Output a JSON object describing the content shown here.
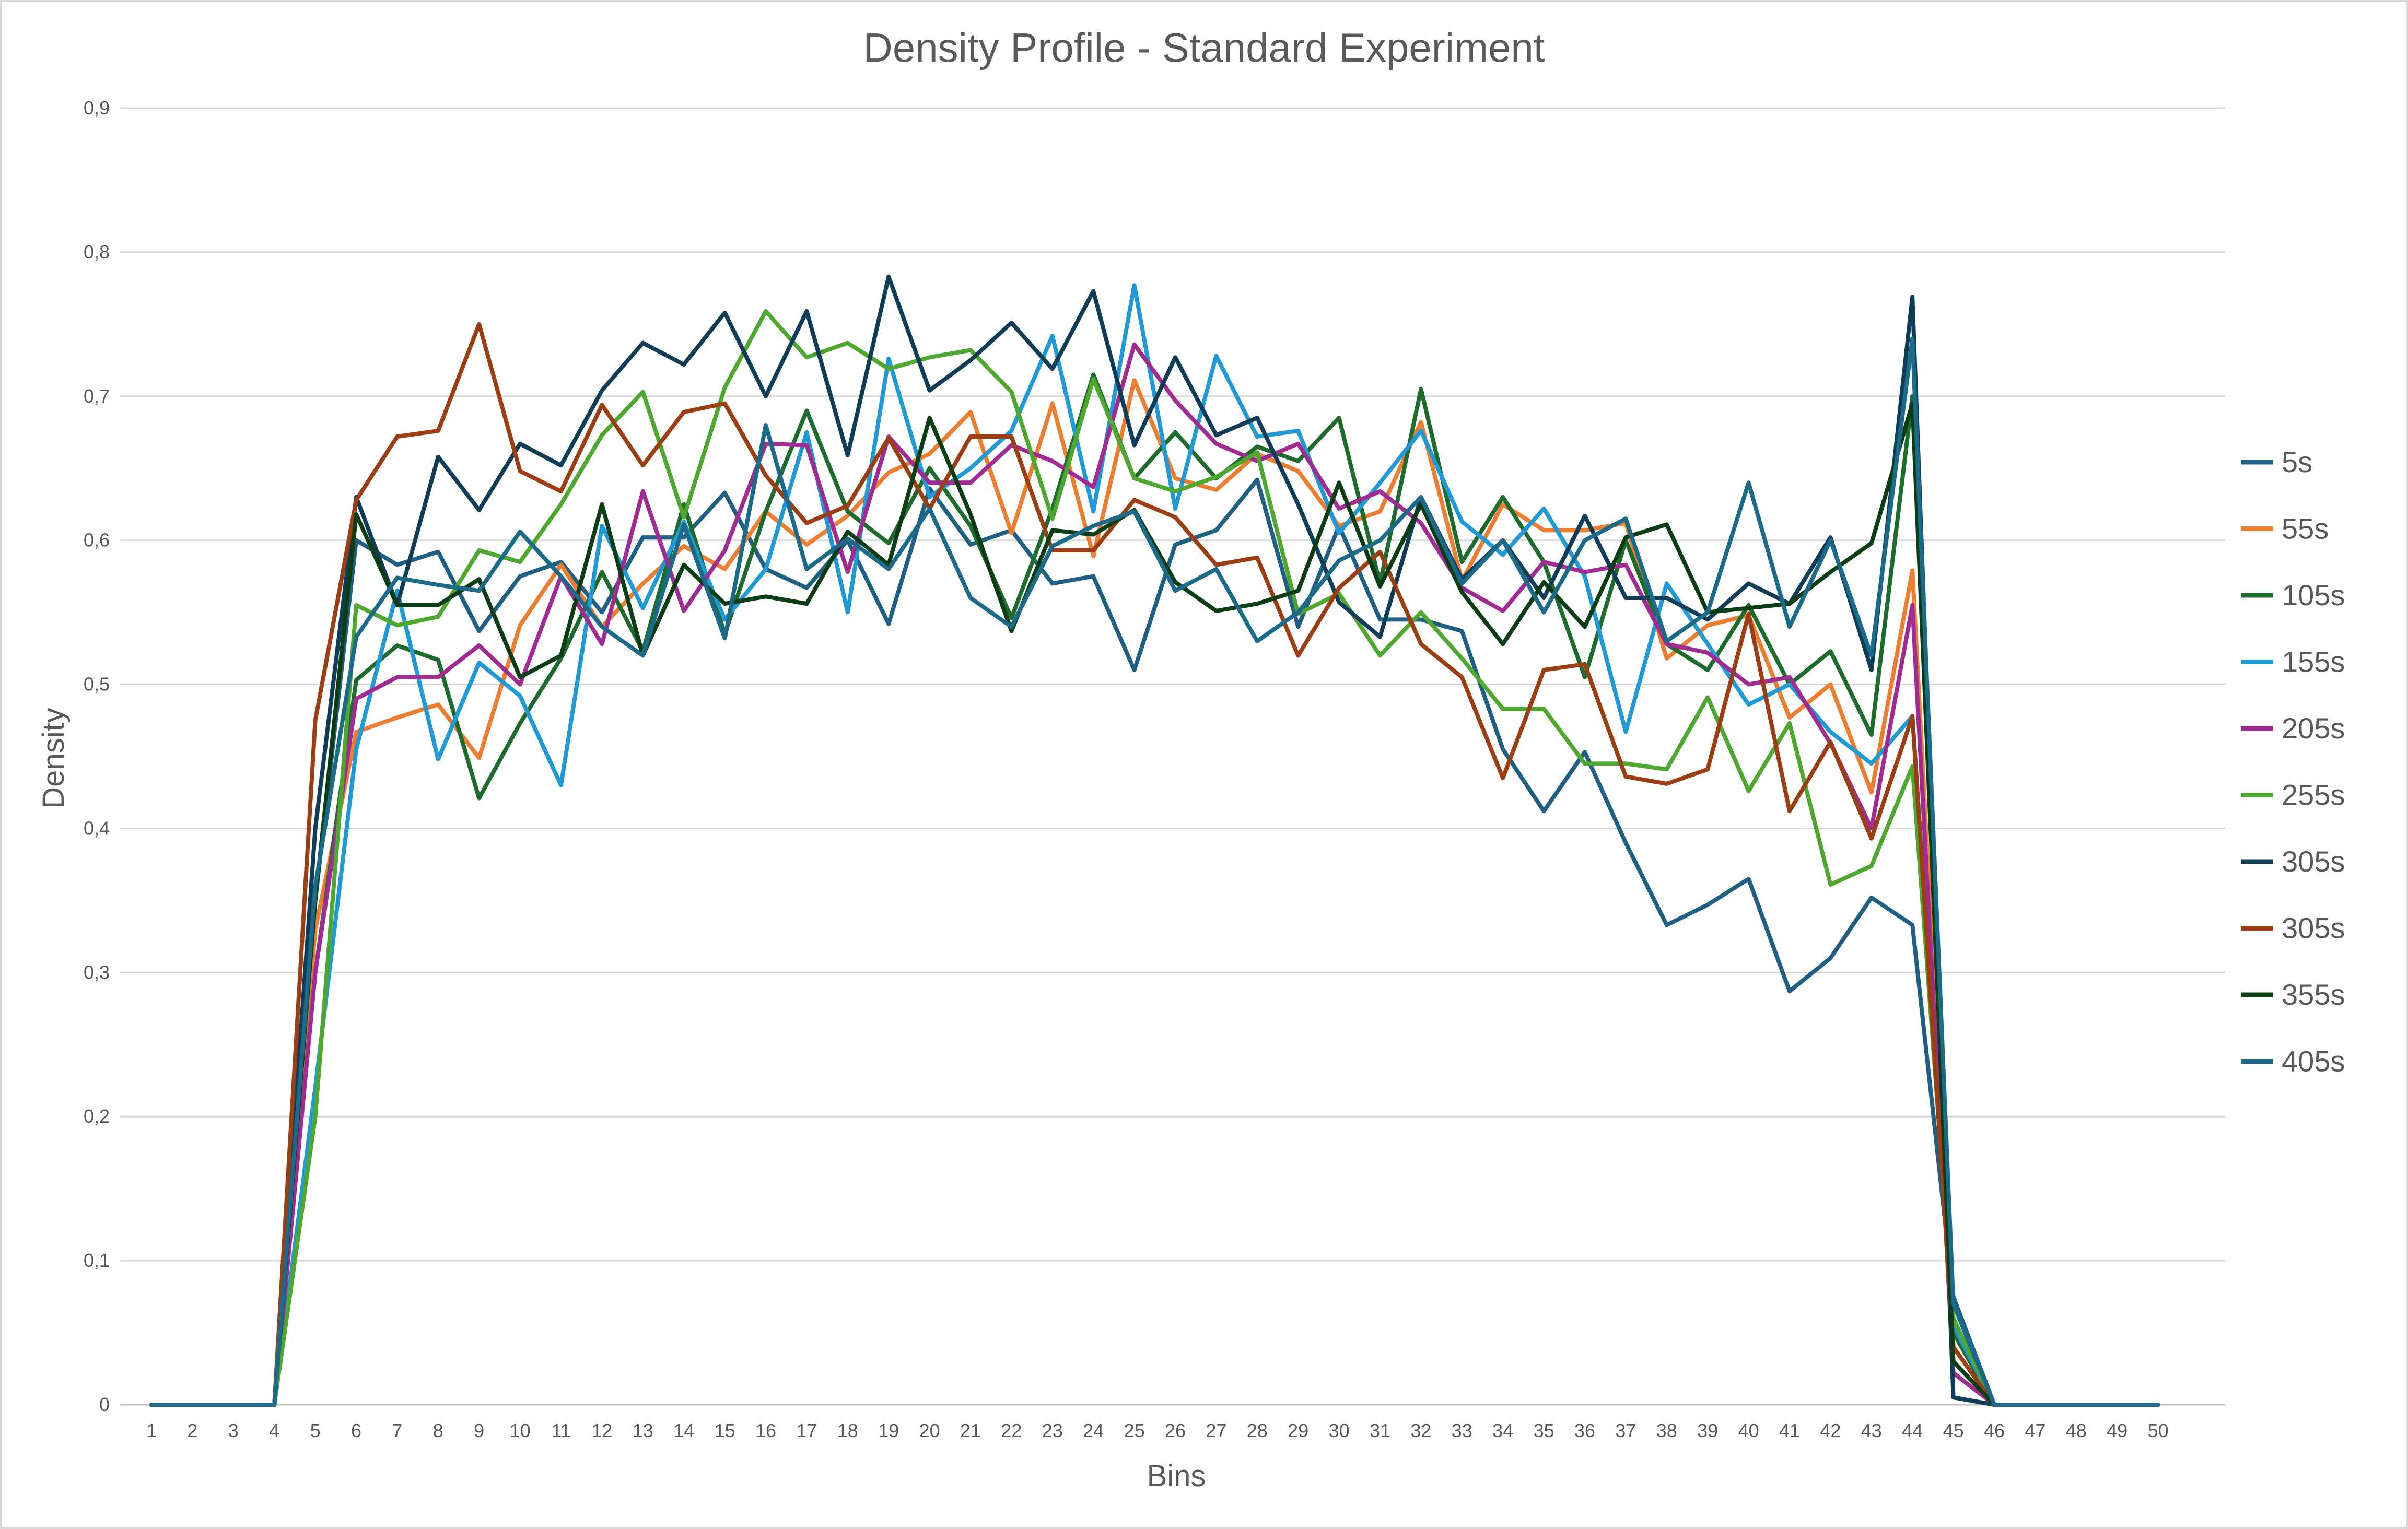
{
  "chart_data": {
    "type": "line",
    "title": "Density Profile - Standard Experiment",
    "xlabel": "Bins",
    "ylabel": "Density",
    "x": [
      1,
      2,
      3,
      4,
      5,
      6,
      7,
      8,
      9,
      10,
      11,
      12,
      13,
      14,
      15,
      16,
      17,
      18,
      19,
      20,
      21,
      22,
      23,
      24,
      25,
      26,
      27,
      28,
      29,
      30,
      31,
      32,
      33,
      34,
      35,
      36,
      37,
      38,
      39,
      40,
      41,
      42,
      43,
      44,
      45,
      46,
      47,
      48,
      49,
      50
    ],
    "ylim": [
      0,
      0.9
    ],
    "yticks": [
      "0",
      "0,1",
      "0,2",
      "0,3",
      "0,4",
      "0,5",
      "0,6",
      "0,7",
      "0,8",
      "0,9"
    ],
    "grid": "horizontal",
    "legend_position": "right",
    "series": [
      {
        "name": "5s",
        "color": "#1f5f83",
        "values": [
          0,
          0,
          0,
          0,
          0.35,
          0.6,
          0.583,
          0.592,
          0.537,
          0.575,
          0.585,
          0.55,
          0.602,
          0.602,
          0.633,
          0.58,
          0.567,
          0.6,
          0.542,
          0.636,
          0.597,
          0.607,
          0.57,
          0.575,
          0.51,
          0.597,
          0.607,
          0.642,
          0.54,
          0.61,
          0.545,
          0.545,
          0.537,
          0.455,
          0.412,
          0.453,
          0.39,
          0.333,
          0.347,
          0.365,
          0.287,
          0.31,
          0.352,
          0.333,
          0.075,
          0,
          0,
          0,
          0,
          0
        ]
      },
      {
        "name": "55s",
        "color": "#ed7d31",
        "values": [
          0,
          0,
          0,
          0,
          0.33,
          0.467,
          0.477,
          0.486,
          0.449,
          0.541,
          0.583,
          0.54,
          0.57,
          0.596,
          0.58,
          0.62,
          0.597,
          0.617,
          0.647,
          0.66,
          0.689,
          0.605,
          0.695,
          0.589,
          0.711,
          0.643,
          0.635,
          0.66,
          0.648,
          0.61,
          0.62,
          0.682,
          0.572,
          0.625,
          0.607,
          0.607,
          0.612,
          0.518,
          0.541,
          0.548,
          0.477,
          0.5,
          0.425,
          0.579,
          0.04,
          0,
          0,
          0,
          0,
          0
        ]
      },
      {
        "name": "105s",
        "color": "#1e6b2e",
        "values": [
          0,
          0,
          0,
          0,
          0.3,
          0.503,
          0.527,
          0.517,
          0.421,
          0.473,
          0.518,
          0.578,
          0.523,
          0.625,
          0.535,
          0.62,
          0.69,
          0.62,
          0.598,
          0.65,
          0.61,
          0.546,
          0.622,
          0.715,
          0.643,
          0.675,
          0.643,
          0.665,
          0.655,
          0.685,
          0.57,
          0.705,
          0.585,
          0.63,
          0.585,
          0.505,
          0.6,
          0.528,
          0.51,
          0.555,
          0.5,
          0.523,
          0.465,
          0.7,
          0.05,
          0,
          0,
          0,
          0,
          0
        ]
      },
      {
        "name": "155s",
        "color": "#1f9ad6",
        "values": [
          0,
          0,
          0,
          0,
          0.22,
          0.455,
          0.565,
          0.448,
          0.515,
          0.492,
          0.43,
          0.61,
          0.553,
          0.613,
          0.545,
          0.58,
          0.675,
          0.55,
          0.726,
          0.63,
          0.65,
          0.676,
          0.742,
          0.62,
          0.777,
          0.622,
          0.728,
          0.672,
          0.676,
          0.605,
          0.64,
          0.676,
          0.613,
          0.59,
          0.622,
          0.575,
          0.467,
          0.57,
          0.528,
          0.486,
          0.5,
          0.467,
          0.445,
          0.478,
          0.055,
          0,
          0,
          0,
          0,
          0
        ]
      },
      {
        "name": "205s",
        "color": "#a02b93",
        "values": [
          0,
          0,
          0,
          0,
          0.3,
          0.49,
          0.505,
          0.505,
          0.527,
          0.5,
          0.575,
          0.528,
          0.634,
          0.551,
          0.593,
          0.667,
          0.666,
          0.578,
          0.672,
          0.64,
          0.64,
          0.666,
          0.655,
          0.637,
          0.736,
          0.697,
          0.667,
          0.655,
          0.667,
          0.622,
          0.634,
          0.612,
          0.567,
          0.551,
          0.585,
          0.578,
          0.583,
          0.528,
          0.522,
          0.5,
          0.505,
          0.459,
          0.4,
          0.555,
          0.022,
          0,
          0,
          0,
          0,
          0
        ]
      },
      {
        "name": "255s",
        "color": "#4ea72e",
        "values": [
          0,
          0,
          0,
          0,
          0.2,
          0.555,
          0.541,
          0.547,
          0.593,
          0.585,
          0.625,
          0.673,
          0.703,
          0.616,
          0.706,
          0.759,
          0.727,
          0.737,
          0.719,
          0.727,
          0.732,
          0.703,
          0.615,
          0.712,
          0.643,
          0.634,
          0.644,
          0.661,
          0.549,
          0.563,
          0.52,
          0.55,
          0.518,
          0.483,
          0.483,
          0.445,
          0.445,
          0.441,
          0.491,
          0.426,
          0.473,
          0.361,
          0.374,
          0.443,
          0.06,
          0,
          0,
          0,
          0,
          0
        ]
      },
      {
        "name": "305s",
        "color": "#0f3c57",
        "values": [
          0,
          0,
          0,
          0,
          0.4,
          0.63,
          0.555,
          0.658,
          0.621,
          0.667,
          0.652,
          0.704,
          0.737,
          0.722,
          0.758,
          0.7,
          0.759,
          0.659,
          0.783,
          0.704,
          0.725,
          0.751,
          0.719,
          0.773,
          0.666,
          0.727,
          0.673,
          0.685,
          0.625,
          0.557,
          0.533,
          0.63,
          0.573,
          0.6,
          0.56,
          0.617,
          0.56,
          0.56,
          0.545,
          0.57,
          0.556,
          0.602,
          0.51,
          0.769,
          0.005,
          0,
          0,
          0,
          0,
          0
        ]
      },
      {
        "name": "305s",
        "color": "#9b3e13",
        "values": [
          0,
          0,
          0,
          0,
          0.475,
          0.628,
          0.672,
          0.676,
          0.75,
          0.648,
          0.634,
          0.694,
          0.652,
          0.689,
          0.695,
          0.645,
          0.612,
          0.624,
          0.671,
          0.622,
          0.672,
          0.672,
          0.593,
          0.593,
          0.628,
          0.616,
          0.583,
          0.588,
          0.52,
          0.567,
          0.592,
          0.528,
          0.505,
          0.435,
          0.51,
          0.514,
          0.436,
          0.431,
          0.441,
          0.549,
          0.412,
          0.46,
          0.393,
          0.478,
          0.04,
          0,
          0,
          0,
          0,
          0
        ]
      },
      {
        "name": "355s",
        "color": "#0b3d14",
        "values": [
          0,
          0,
          0,
          0,
          0.35,
          0.618,
          0.555,
          0.555,
          0.573,
          0.505,
          0.52,
          0.625,
          0.52,
          0.583,
          0.556,
          0.561,
          0.556,
          0.606,
          0.583,
          0.685,
          0.618,
          0.537,
          0.607,
          0.604,
          0.621,
          0.571,
          0.551,
          0.556,
          0.565,
          0.64,
          0.568,
          0.625,
          0.564,
          0.528,
          0.571,
          0.54,
          0.602,
          0.611,
          0.55,
          0.553,
          0.556,
          0.578,
          0.598,
          0.695,
          0.03,
          0,
          0,
          0,
          0,
          0
        ]
      },
      {
        "name": "405s",
        "color": "#1b6a8a",
        "values": [
          0,
          0,
          0,
          0,
          0.36,
          0.533,
          0.574,
          0.569,
          0.565,
          0.606,
          0.575,
          0.54,
          0.52,
          0.611,
          0.532,
          0.68,
          0.58,
          0.601,
          0.58,
          0.622,
          0.56,
          0.54,
          0.596,
          0.61,
          0.62,
          0.565,
          0.58,
          0.53,
          0.55,
          0.586,
          0.6,
          0.63,
          0.57,
          0.6,
          0.55,
          0.6,
          0.615,
          0.53,
          0.55,
          0.64,
          0.54,
          0.6,
          0.52,
          0.74,
          0.07,
          0,
          0,
          0,
          0,
          0
        ]
      }
    ]
  }
}
